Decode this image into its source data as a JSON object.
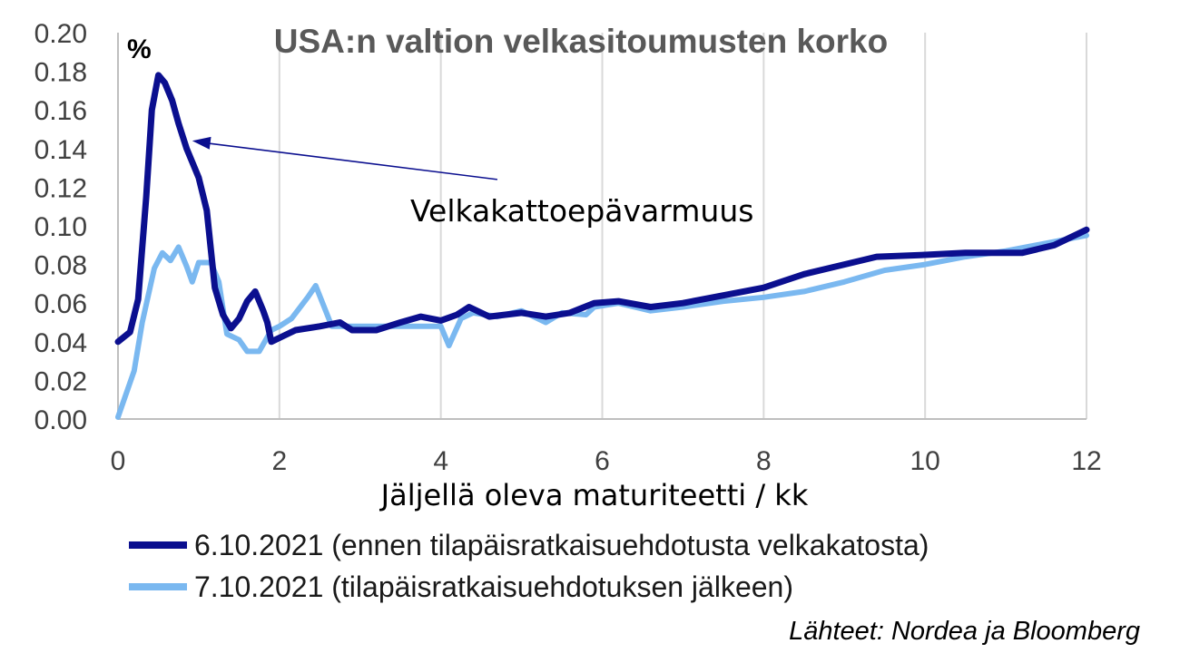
{
  "chart_data": {
    "type": "line",
    "title": "USA:n valtion velkasitoumusten korko",
    "unit_label": "%",
    "xlabel": "Jäljellä oleva maturiteetti / kk",
    "ylabel": "",
    "xlim": [
      0,
      12
    ],
    "ylim": [
      0,
      0.2
    ],
    "x_ticks": [
      "0",
      "2",
      "4",
      "6",
      "8",
      "10",
      "12"
    ],
    "y_ticks": [
      "0.00",
      "0.02",
      "0.04",
      "0.06",
      "0.08",
      "0.10",
      "0.12",
      "0.14",
      "0.16",
      "0.18",
      "0.20"
    ],
    "grid": "vertical",
    "legend_position": "bottom",
    "annotation": {
      "text": "Velkakattoepävarmuus",
      "arrow_to": [
        0.92,
        0.144
      ],
      "arrow_from": [
        4.7,
        0.124
      ]
    },
    "source": "Lähteet: Nordea ja Bloomberg",
    "series": [
      {
        "name": "6.10.2021 (ennen tilapäisratkaisuehdotusta velkakatosta)",
        "color": "#0b0f8f",
        "points": [
          [
            0.0,
            0.04
          ],
          [
            0.15,
            0.045
          ],
          [
            0.25,
            0.062
          ],
          [
            0.35,
            0.115
          ],
          [
            0.42,
            0.16
          ],
          [
            0.5,
            0.178
          ],
          [
            0.58,
            0.174
          ],
          [
            0.67,
            0.165
          ],
          [
            0.75,
            0.153
          ],
          [
            0.85,
            0.14
          ],
          [
            0.92,
            0.133
          ],
          [
            1.0,
            0.125
          ],
          [
            1.1,
            0.108
          ],
          [
            1.2,
            0.068
          ],
          [
            1.3,
            0.054
          ],
          [
            1.4,
            0.047
          ],
          [
            1.5,
            0.052
          ],
          [
            1.6,
            0.061
          ],
          [
            1.7,
            0.066
          ],
          [
            1.8,
            0.056
          ],
          [
            1.85,
            0.05
          ],
          [
            1.9,
            0.04
          ],
          [
            2.05,
            0.043
          ],
          [
            2.2,
            0.046
          ],
          [
            2.5,
            0.048
          ],
          [
            2.75,
            0.05
          ],
          [
            2.9,
            0.046
          ],
          [
            3.2,
            0.046
          ],
          [
            3.5,
            0.05
          ],
          [
            3.75,
            0.053
          ],
          [
            4.0,
            0.051
          ],
          [
            4.2,
            0.054
          ],
          [
            4.35,
            0.058
          ],
          [
            4.6,
            0.053
          ],
          [
            5.0,
            0.055
          ],
          [
            5.3,
            0.053
          ],
          [
            5.6,
            0.055
          ],
          [
            5.9,
            0.06
          ],
          [
            6.2,
            0.061
          ],
          [
            6.6,
            0.058
          ],
          [
            7.0,
            0.06
          ],
          [
            7.5,
            0.064
          ],
          [
            8.0,
            0.068
          ],
          [
            8.5,
            0.075
          ],
          [
            9.0,
            0.08
          ],
          [
            9.4,
            0.084
          ],
          [
            10.0,
            0.085
          ],
          [
            10.5,
            0.086
          ],
          [
            11.2,
            0.086
          ],
          [
            11.6,
            0.09
          ],
          [
            12.0,
            0.098
          ]
        ]
      },
      {
        "name": "7.10.2021 (tilapäisratkaisuehdotuksen jälkeen)",
        "color": "#7ab8f0",
        "points": [
          [
            0.0,
            0.001
          ],
          [
            0.2,
            0.025
          ],
          [
            0.3,
            0.05
          ],
          [
            0.45,
            0.078
          ],
          [
            0.55,
            0.086
          ],
          [
            0.65,
            0.082
          ],
          [
            0.75,
            0.089
          ],
          [
            0.85,
            0.079
          ],
          [
            0.92,
            0.071
          ],
          [
            1.0,
            0.081
          ],
          [
            1.15,
            0.081
          ],
          [
            1.25,
            0.071
          ],
          [
            1.35,
            0.044
          ],
          [
            1.5,
            0.041
          ],
          [
            1.6,
            0.035
          ],
          [
            1.75,
            0.035
          ],
          [
            1.9,
            0.046
          ],
          [
            2.0,
            0.048
          ],
          [
            2.15,
            0.052
          ],
          [
            2.35,
            0.063
          ],
          [
            2.45,
            0.069
          ],
          [
            2.65,
            0.048
          ],
          [
            2.8,
            0.048
          ],
          [
            3.2,
            0.048
          ],
          [
            3.6,
            0.048
          ],
          [
            4.0,
            0.048
          ],
          [
            4.1,
            0.038
          ],
          [
            4.25,
            0.052
          ],
          [
            4.4,
            0.055
          ],
          [
            4.7,
            0.053
          ],
          [
            5.0,
            0.056
          ],
          [
            5.3,
            0.05
          ],
          [
            5.5,
            0.055
          ],
          [
            5.8,
            0.054
          ],
          [
            5.9,
            0.058
          ],
          [
            6.2,
            0.06
          ],
          [
            6.6,
            0.056
          ],
          [
            7.0,
            0.058
          ],
          [
            7.5,
            0.061
          ],
          [
            8.0,
            0.063
          ],
          [
            8.5,
            0.066
          ],
          [
            9.0,
            0.071
          ],
          [
            9.5,
            0.077
          ],
          [
            10.0,
            0.08
          ],
          [
            10.5,
            0.084
          ],
          [
            11.0,
            0.087
          ],
          [
            11.5,
            0.091
          ],
          [
            12.0,
            0.095
          ]
        ]
      }
    ]
  }
}
